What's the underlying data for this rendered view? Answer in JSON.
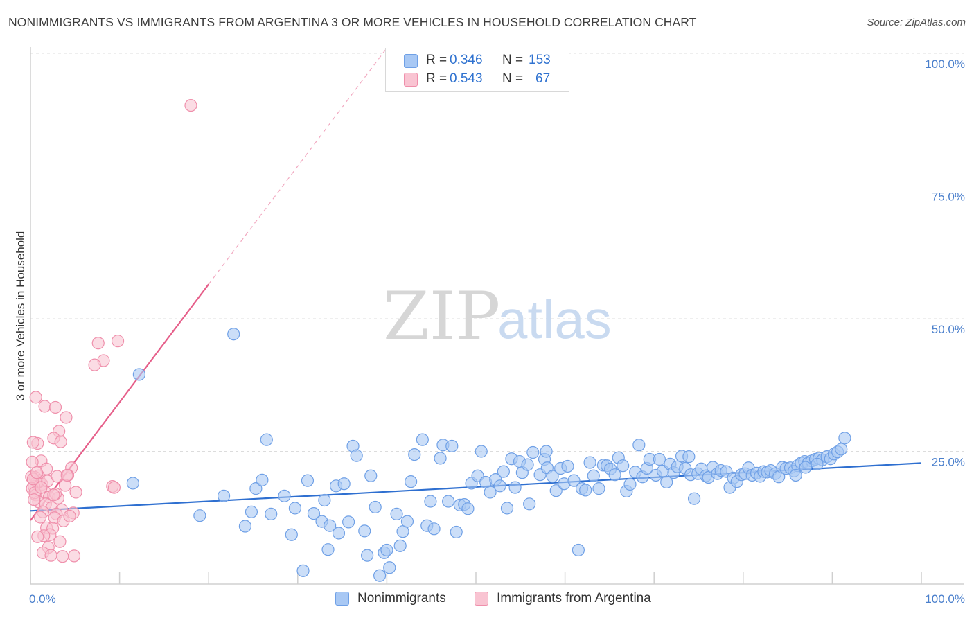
{
  "title": "NONIMMIGRANTS VS IMMIGRANTS FROM ARGENTINA 3 OR MORE VEHICLES IN HOUSEHOLD CORRELATION CHART",
  "source": "Source: ZipAtlas.com",
  "watermark": {
    "zip": "ZIP",
    "atlas": "atlas"
  },
  "legend": {
    "rows": [
      {
        "r_label": "R =",
        "r_value": "0.346",
        "n_label": "N =",
        "n_value": "153",
        "color": "#a8c8f4",
        "stroke": "#6fa0e6"
      },
      {
        "r_label": "R =",
        "r_value": "0.543",
        "n_label": "N =",
        "n_value": "67",
        "color": "#f9c4d2",
        "stroke": "#ef8fab"
      }
    ]
  },
  "bottom_legend": [
    "Nonimmigrants",
    "Immigrants from Argentina"
  ],
  "chart_data": {
    "type": "scatter",
    "title": "NONIMMIGRANTS VS IMMIGRANTS FROM ARGENTINA 3 OR MORE VEHICLES IN HOUSEHOLD CORRELATION CHART",
    "xlabel": "",
    "ylabel": "3 or more Vehicles in Household",
    "xlim": [
      0,
      100
    ],
    "ylim": [
      0,
      100
    ],
    "x_tick_labels": [
      "0.0%",
      "100.0%"
    ],
    "y_tick_labels": [
      "100.0%",
      "75.0%",
      "50.0%",
      "25.0%"
    ],
    "y_ticks": [
      100,
      75,
      50,
      25
    ],
    "grid": true,
    "legend_position": "top-center",
    "series": [
      {
        "name": "Nonimmigrants",
        "color": "#a8c8f4",
        "stroke": "#6fa0e6",
        "trend": {
          "x": [
            0,
            100
          ],
          "y": [
            13.8,
            22.8
          ],
          "color": "#2e6fd0"
        },
        "points": [
          [
            12.2,
            39.5
          ],
          [
            11.5,
            19.0
          ],
          [
            19,
            12.9
          ],
          [
            21.7,
            16.6
          ],
          [
            22.8,
            47.1
          ],
          [
            24.1,
            10.9
          ],
          [
            24.8,
            13.6
          ],
          [
            25.3,
            18.0
          ],
          [
            26,
            19.6
          ],
          [
            26.5,
            27.2
          ],
          [
            27,
            13.2
          ],
          [
            28.5,
            16.6
          ],
          [
            29.3,
            9.3
          ],
          [
            29.7,
            14.3
          ],
          [
            30.6,
            2.5
          ],
          [
            31.1,
            19.5
          ],
          [
            31.8,
            13.3
          ],
          [
            32.7,
            11.8
          ],
          [
            33,
            15.8
          ],
          [
            33.6,
            11.0
          ],
          [
            34.3,
            18.5
          ],
          [
            34.6,
            9.6
          ],
          [
            35.2,
            18.9
          ],
          [
            35.7,
            11.7
          ],
          [
            36.2,
            26.0
          ],
          [
            36.6,
            24.2
          ],
          [
            37.5,
            10.0
          ],
          [
            37.8,
            5.4
          ],
          [
            38.2,
            20.4
          ],
          [
            38.7,
            14.5
          ],
          [
            39.2,
            1.6
          ],
          [
            39.7,
            5.9
          ],
          [
            40,
            6.4
          ],
          [
            40.3,
            3.1
          ],
          [
            41.1,
            13.2
          ],
          [
            41.5,
            7.2
          ],
          [
            41.8,
            9.9
          ],
          [
            42.3,
            11.8
          ],
          [
            43.1,
            24.4
          ],
          [
            44,
            27.2
          ],
          [
            44.5,
            11.0
          ],
          [
            44.9,
            15.6
          ],
          [
            45.3,
            10.4
          ],
          [
            46,
            23.7
          ],
          [
            46.3,
            26.2
          ],
          [
            46.9,
            15.6
          ],
          [
            47.3,
            26.0
          ],
          [
            47.8,
            9.8
          ],
          [
            48.2,
            14.9
          ],
          [
            48.7,
            15.0
          ],
          [
            49.1,
            14.2
          ],
          [
            49.5,
            19.0
          ],
          [
            50.2,
            20.4
          ],
          [
            50.6,
            25.0
          ],
          [
            51.1,
            19.2
          ],
          [
            51.6,
            17.3
          ],
          [
            52.2,
            19.7
          ],
          [
            52.7,
            18.5
          ],
          [
            53.1,
            21.2
          ],
          [
            53.5,
            14.3
          ],
          [
            54,
            23.6
          ],
          [
            54.4,
            18.2
          ],
          [
            54.9,
            23.1
          ],
          [
            55.2,
            21.0
          ],
          [
            56,
            15.1
          ],
          [
            56.4,
            24.8
          ],
          [
            57.2,
            20.6
          ],
          [
            57.7,
            23.5
          ],
          [
            58,
            21.9
          ],
          [
            58.6,
            20.3
          ],
          [
            59,
            17.6
          ],
          [
            59.5,
            21.8
          ],
          [
            59.9,
            18.9
          ],
          [
            60.3,
            22.2
          ],
          [
            61,
            19.5
          ],
          [
            61.5,
            6.4
          ],
          [
            61.9,
            18.0
          ],
          [
            62.3,
            17.7
          ],
          [
            62.8,
            22.9
          ],
          [
            63.2,
            20.4
          ],
          [
            63.8,
            18.0
          ],
          [
            64.3,
            22.4
          ],
          [
            64.7,
            22.3
          ],
          [
            65.1,
            21.7
          ],
          [
            65.6,
            20.6
          ],
          [
            66,
            23.8
          ],
          [
            66.5,
            22.3
          ],
          [
            66.9,
            17.5
          ],
          [
            67.3,
            18.8
          ],
          [
            67.9,
            21.1
          ],
          [
            68.3,
            26.2
          ],
          [
            68.7,
            20.2
          ],
          [
            69.2,
            21.8
          ],
          [
            69.5,
            23.5
          ],
          [
            70.2,
            20.5
          ],
          [
            70.6,
            23.5
          ],
          [
            71,
            21.3
          ],
          [
            71.4,
            19.2
          ],
          [
            71.8,
            22.6
          ],
          [
            72.2,
            21.0
          ],
          [
            72.6,
            22.1
          ],
          [
            73.1,
            24.1
          ],
          [
            73.5,
            21.8
          ],
          [
            74.1,
            20.6
          ],
          [
            74.5,
            16.1
          ],
          [
            74.9,
            20.8
          ],
          [
            75.3,
            21.7
          ],
          [
            75.8,
            20.4
          ],
          [
            76.1,
            20.1
          ],
          [
            76.6,
            22.0
          ],
          [
            77.1,
            20.8
          ],
          [
            77.5,
            21.4
          ],
          [
            78.1,
            21.2
          ],
          [
            78.5,
            18.2
          ],
          [
            78.9,
            20.0
          ],
          [
            79.3,
            19.3
          ],
          [
            79.8,
            20.6
          ],
          [
            80.2,
            20.8
          ],
          [
            80.6,
            21.9
          ],
          [
            81,
            20.5
          ],
          [
            81.5,
            20.9
          ],
          [
            81.9,
            20.3
          ],
          [
            82.3,
            21.2
          ],
          [
            82.7,
            21.1
          ],
          [
            83.1,
            21.4
          ],
          [
            83.6,
            20.8
          ],
          [
            84,
            20.2
          ],
          [
            84.4,
            22.0
          ],
          [
            84.8,
            21.8
          ],
          [
            85.3,
            21.9
          ],
          [
            85.7,
            21.3
          ],
          [
            86.1,
            22.3
          ],
          [
            86.5,
            22.8
          ],
          [
            86.9,
            23.1
          ],
          [
            87.3,
            22.8
          ],
          [
            87.7,
            23.2
          ],
          [
            88.1,
            23.5
          ],
          [
            88.5,
            23.7
          ],
          [
            88.9,
            23.4
          ],
          [
            89.4,
            24.0
          ],
          [
            89.8,
            23.6
          ],
          [
            90.2,
            24.5
          ],
          [
            90.6,
            24.9
          ],
          [
            91,
            25.4
          ],
          [
            91.4,
            27.5
          ],
          [
            88.3,
            22.6
          ],
          [
            87.0,
            22.0
          ],
          [
            85.9,
            20.5
          ],
          [
            73.9,
            24.0
          ],
          [
            55.8,
            22.5
          ],
          [
            42.7,
            19.3
          ],
          [
            33.4,
            6.5
          ],
          [
            57.9,
            25.0
          ]
        ]
      },
      {
        "name": "Immigrants from Argentina",
        "color": "#f9c4d2",
        "stroke": "#ef8fab",
        "trend": {
          "x": [
            0,
            20.0
          ],
          "y": [
            12.0,
            56.5
          ],
          "dash_to": [
            40.0,
            101.0
          ],
          "color": "#e65f8a"
        },
        "points": [
          [
            18.0,
            90.2
          ],
          [
            9.8,
            45.8
          ],
          [
            7.6,
            45.4
          ],
          [
            8.2,
            42.1
          ],
          [
            7.2,
            41.3
          ],
          [
            0.6,
            35.2
          ],
          [
            1.6,
            33.5
          ],
          [
            2.8,
            33.3
          ],
          [
            4.0,
            31.4
          ],
          [
            3.2,
            28.8
          ],
          [
            2.6,
            27.5
          ],
          [
            3.4,
            26.8
          ],
          [
            0.8,
            26.5
          ],
          [
            0.3,
            26.7
          ],
          [
            1.2,
            23.2
          ],
          [
            0.2,
            23.0
          ],
          [
            4.6,
            21.9
          ],
          [
            4.2,
            20.5
          ],
          [
            1.8,
            21.7
          ],
          [
            0.9,
            20.4
          ],
          [
            0.5,
            20.1
          ],
          [
            1.0,
            19.5
          ],
          [
            0.7,
            19.2
          ],
          [
            1.3,
            18.8
          ],
          [
            0.4,
            18.4
          ],
          [
            0.2,
            18.0
          ],
          [
            1.6,
            17.4
          ],
          [
            0.6,
            16.8
          ],
          [
            2.1,
            16.4
          ],
          [
            3.1,
            16.2
          ],
          [
            0.9,
            15.5
          ],
          [
            1.7,
            15.1
          ],
          [
            2.4,
            14.4
          ],
          [
            3.5,
            14.0
          ],
          [
            1.4,
            13.6
          ],
          [
            2.9,
            13.2
          ],
          [
            1.1,
            12.6
          ],
          [
            2.7,
            12.5
          ],
          [
            4.8,
            13.4
          ],
          [
            3.7,
            11.9
          ],
          [
            1.8,
            10.6
          ],
          [
            2.5,
            10.5
          ],
          [
            2.2,
            9.3
          ],
          [
            1.5,
            9.1
          ],
          [
            0.8,
            8.9
          ],
          [
            3.3,
            8.0
          ],
          [
            2.0,
            6.9
          ],
          [
            1.4,
            5.9
          ],
          [
            2.3,
            5.4
          ],
          [
            3.6,
            5.2
          ],
          [
            4.9,
            5.3
          ],
          [
            9.2,
            18.4
          ],
          [
            9.4,
            18.2
          ],
          [
            0.1,
            20.2
          ],
          [
            0.3,
            19.8
          ],
          [
            0.5,
            17.2
          ],
          [
            1.9,
            19.4
          ],
          [
            2.8,
            17.0
          ],
          [
            0.4,
            15.9
          ],
          [
            3.9,
            18.6
          ],
          [
            3.0,
            20.3
          ],
          [
            1.2,
            18.2
          ],
          [
            2.6,
            16.8
          ],
          [
            0.7,
            21.0
          ],
          [
            4.4,
            12.8
          ],
          [
            5.1,
            17.3
          ],
          [
            4.1,
            20.5
          ]
        ]
      }
    ]
  }
}
